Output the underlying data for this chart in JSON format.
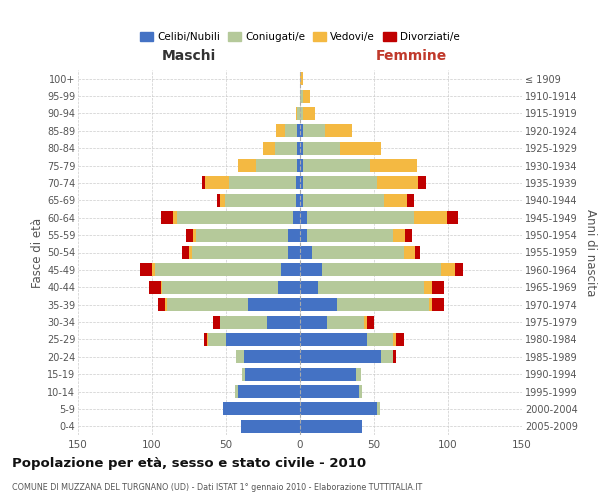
{
  "age_groups": [
    "0-4",
    "5-9",
    "10-14",
    "15-19",
    "20-24",
    "25-29",
    "30-34",
    "35-39",
    "40-44",
    "45-49",
    "50-54",
    "55-59",
    "60-64",
    "65-69",
    "70-74",
    "75-79",
    "80-84",
    "85-89",
    "90-94",
    "95-99",
    "100+"
  ],
  "birth_years": [
    "2005-2009",
    "2000-2004",
    "1995-1999",
    "1990-1994",
    "1985-1989",
    "1980-1984",
    "1975-1979",
    "1970-1974",
    "1965-1969",
    "1960-1964",
    "1955-1959",
    "1950-1954",
    "1945-1949",
    "1940-1944",
    "1935-1939",
    "1930-1934",
    "1925-1929",
    "1920-1924",
    "1915-1919",
    "1910-1914",
    "≤ 1909"
  ],
  "maschi_celibe": [
    40,
    52,
    42,
    37,
    38,
    50,
    22,
    35,
    15,
    13,
    8,
    8,
    5,
    3,
    3,
    2,
    2,
    2,
    0,
    0,
    0
  ],
  "maschi_coniugato": [
    0,
    0,
    2,
    2,
    5,
    12,
    32,
    55,
    78,
    85,
    65,
    62,
    78,
    48,
    45,
    28,
    15,
    8,
    2,
    0,
    0
  ],
  "maschi_vedovo": [
    0,
    0,
    0,
    0,
    0,
    1,
    0,
    1,
    1,
    2,
    2,
    2,
    3,
    3,
    16,
    12,
    8,
    6,
    1,
    0,
    0
  ],
  "maschi_divorziato": [
    0,
    0,
    0,
    0,
    0,
    2,
    5,
    5,
    8,
    8,
    5,
    5,
    8,
    2,
    2,
    0,
    0,
    0,
    0,
    0,
    0
  ],
  "femmine_celibe": [
    42,
    52,
    40,
    38,
    55,
    45,
    18,
    25,
    12,
    15,
    8,
    5,
    5,
    2,
    2,
    2,
    2,
    2,
    0,
    0,
    0
  ],
  "femmine_coniugato": [
    0,
    2,
    2,
    3,
    8,
    18,
    25,
    62,
    72,
    80,
    62,
    58,
    72,
    55,
    50,
    45,
    25,
    15,
    2,
    2,
    0
  ],
  "femmine_vedovo": [
    0,
    0,
    0,
    0,
    0,
    2,
    2,
    2,
    5,
    10,
    8,
    8,
    22,
    15,
    28,
    32,
    28,
    18,
    8,
    5,
    2
  ],
  "femmine_divorziato": [
    0,
    0,
    0,
    0,
    2,
    5,
    5,
    8,
    8,
    5,
    3,
    5,
    8,
    5,
    5,
    0,
    0,
    0,
    0,
    0,
    0
  ],
  "colors": {
    "celibe": "#4472c4",
    "coniugato": "#b5c99a",
    "vedovo": "#f4b942",
    "divorziato": "#c00000"
  },
  "title": "Popolazione per età, sesso e stato civile - 2010",
  "subtitle": "COMUNE DI MUZZANA DEL TURGNANO (UD) - Dati ISTAT 1° gennaio 2010 - Elaborazione TUTTITALIA.IT",
  "xlabel_left": "Maschi",
  "xlabel_right": "Femmine",
  "ylabel_left": "Fasce di età",
  "ylabel_right": "Anni di nascita",
  "xlim": 150,
  "background_color": "#ffffff",
  "grid_color": "#cccccc"
}
